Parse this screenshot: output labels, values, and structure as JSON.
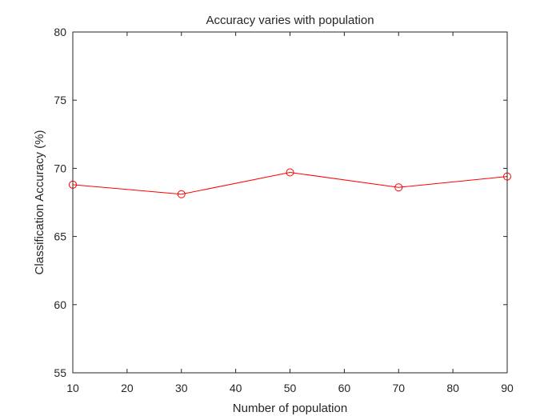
{
  "chart_data": {
    "type": "line",
    "title": "Accuracy varies with population",
    "xlabel": "Number of population",
    "ylabel": "Classification Accuracy (%)",
    "xlim": [
      10,
      90
    ],
    "ylim": [
      55,
      80
    ],
    "xticks": [
      10,
      20,
      30,
      40,
      50,
      60,
      70,
      80,
      90
    ],
    "yticks": [
      55,
      60,
      65,
      70,
      75,
      80
    ],
    "grid": false,
    "legend": "none",
    "series": [
      {
        "color": "#ff0000",
        "marker": "circle",
        "x": [
          10,
          30,
          50,
          70,
          90
        ],
        "values": [
          68.8,
          68.1,
          69.7,
          68.6,
          69.4
        ]
      }
    ]
  }
}
